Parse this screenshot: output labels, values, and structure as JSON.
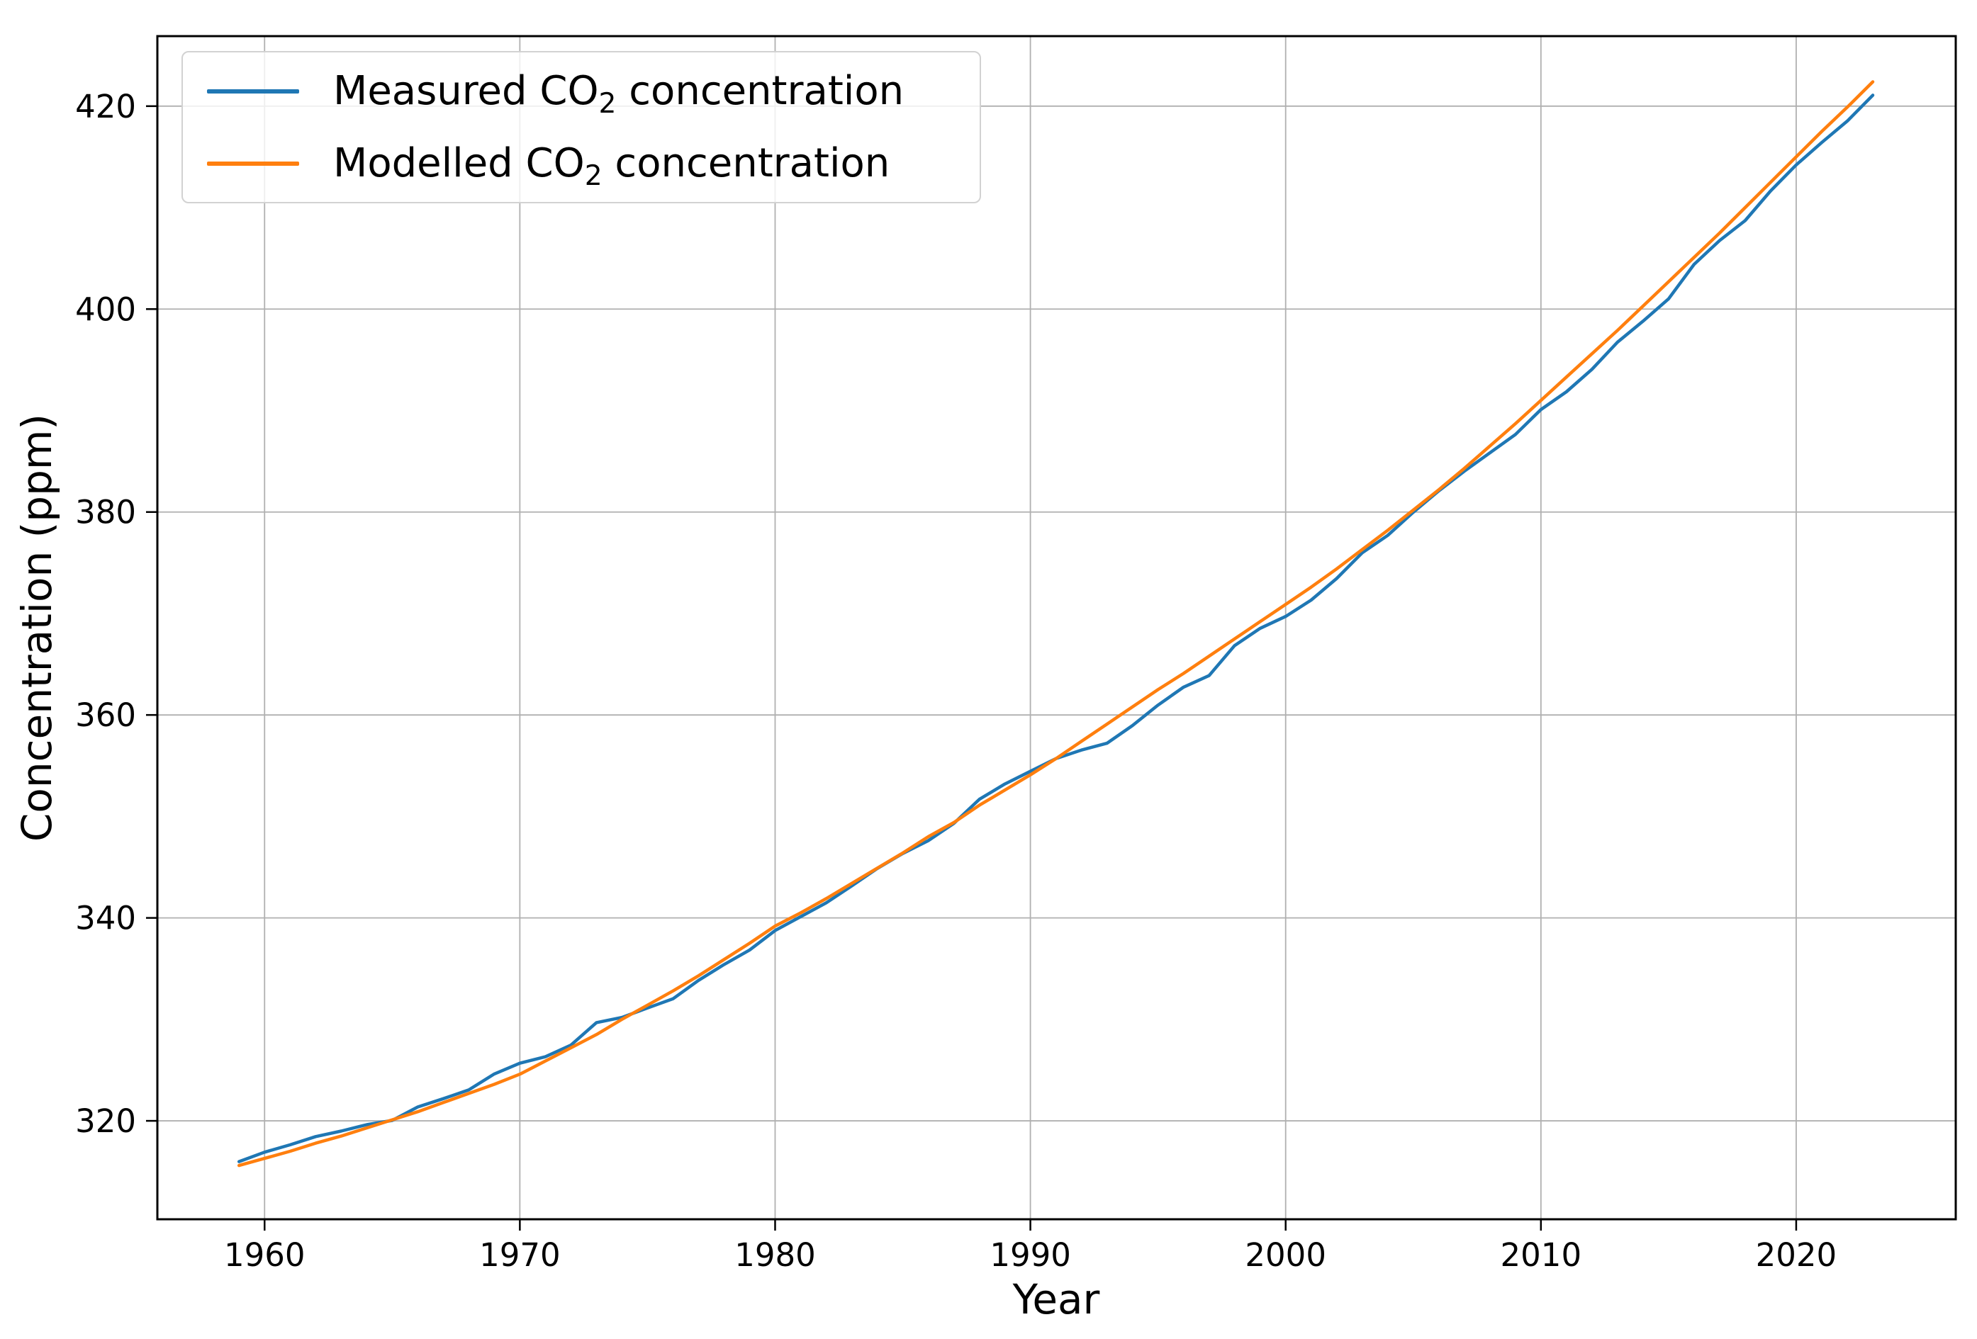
{
  "chart_data": {
    "type": "line",
    "title": "",
    "xlabel": "Year",
    "ylabel": "Concentration (ppm)",
    "xlim": [
      1955.8,
      2026.25
    ],
    "ylim": [
      310.3,
      426.9
    ],
    "x_ticks": [
      1960,
      1970,
      1980,
      1990,
      2000,
      2010,
      2020
    ],
    "y_ticks": [
      320,
      340,
      360,
      380,
      400,
      420
    ],
    "grid": true,
    "grid_color": "#b0b0b0",
    "spine_color": "#000000",
    "legend_position": "upper left",
    "x": [
      1959,
      1960,
      1961,
      1962,
      1963,
      1964,
      1965,
      1966,
      1967,
      1968,
      1969,
      1970,
      1971,
      1972,
      1973,
      1974,
      1975,
      1976,
      1977,
      1978,
      1979,
      1980,
      1981,
      1982,
      1983,
      1984,
      1985,
      1986,
      1987,
      1988,
      1989,
      1990,
      1991,
      1992,
      1993,
      1994,
      1995,
      1996,
      1997,
      1998,
      1999,
      2000,
      2001,
      2002,
      2003,
      2004,
      2005,
      2006,
      2007,
      2008,
      2009,
      2010,
      2011,
      2012,
      2013,
      2014,
      2015,
      2016,
      2017,
      2018,
      2019,
      2020,
      2021,
      2022,
      2023
    ],
    "series": [
      {
        "name_prefix": "Measured CO",
        "name_sub": "2",
        "name_suffix": " concentration",
        "color": "#1f77b4",
        "values": [
          315.98,
          316.91,
          317.64,
          318.45,
          318.99,
          319.62,
          320.04,
          321.37,
          322.18,
          323.05,
          324.62,
          325.68,
          326.32,
          327.46,
          329.68,
          330.19,
          331.12,
          332.03,
          333.84,
          335.41,
          336.84,
          338.76,
          340.12,
          341.48,
          343.15,
          344.87,
          346.35,
          347.61,
          349.31,
          351.69,
          353.2,
          354.45,
          355.7,
          356.54,
          357.21,
          358.96,
          360.97,
          362.74,
          363.88,
          366.84,
          368.54,
          369.71,
          371.32,
          373.45,
          375.98,
          377.7,
          379.98,
          382.09,
          384.02,
          385.83,
          387.64,
          390.1,
          391.85,
          394.06,
          396.74,
          398.81,
          401.01,
          404.41,
          406.76,
          408.72,
          411.65,
          414.21,
          416.41,
          418.53,
          421.08
        ]
      },
      {
        "name_prefix": "Modelled CO",
        "name_sub": "2",
        "name_suffix": " concentration",
        "color": "#ff7f0e",
        "values": [
          315.6,
          316.3,
          317.0,
          317.8,
          318.5,
          319.3,
          320.1,
          320.9,
          321.8,
          322.7,
          323.6,
          324.6,
          325.9,
          327.2,
          328.5,
          330.0,
          331.4,
          332.8,
          334.3,
          335.9,
          337.5,
          339.2,
          340.5,
          341.9,
          343.4,
          344.9,
          346.4,
          348.0,
          349.4,
          351.1,
          352.6,
          354.1,
          355.7,
          357.4,
          359.1,
          360.8,
          362.5,
          364.1,
          365.8,
          367.5,
          369.2,
          370.9,
          372.6,
          374.4,
          376.3,
          378.2,
          380.2,
          382.2,
          384.3,
          386.5,
          388.7,
          391.0,
          393.3,
          395.6,
          397.9,
          400.3,
          402.7,
          405.1,
          407.5,
          410.0,
          412.5,
          415.0,
          417.5,
          419.9,
          422.4
        ]
      }
    ]
  }
}
